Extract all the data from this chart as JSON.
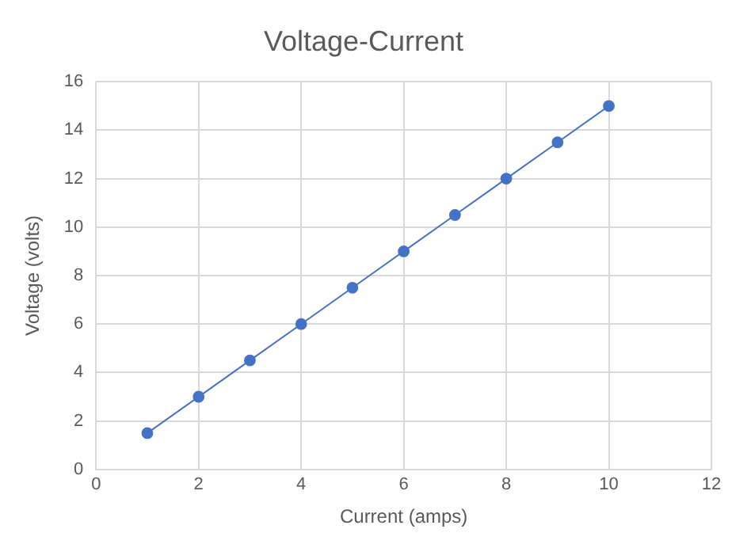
{
  "chart_data": {
    "type": "line",
    "title": "Voltage-Current",
    "xlabel": "Current (amps)",
    "ylabel": "Voltage (volts)",
    "x": [
      1,
      2,
      3,
      4,
      5,
      6,
      7,
      8,
      9,
      10
    ],
    "series": [
      {
        "color": "#4472c4",
        "values": [
          1.5,
          3,
          4.5,
          6,
          7.5,
          9,
          10.5,
          12,
          13.5,
          15
        ]
      }
    ],
    "xlim": [
      0,
      12
    ],
    "xticks": [
      0,
      2,
      4,
      6,
      8,
      10,
      12
    ],
    "ylim": [
      0,
      16
    ],
    "yticks": [
      0,
      2,
      4,
      6,
      8,
      10,
      12,
      14,
      16
    ],
    "grid": true,
    "legend": false,
    "marker": "circle",
    "line_style": "solid"
  }
}
